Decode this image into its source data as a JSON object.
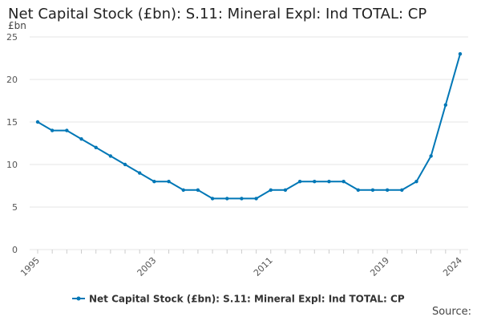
{
  "chart_data": {
    "type": "line",
    "title": "Net Capital Stock (£bn): S.11: Mineral Expl: Ind TOTAL: CP",
    "ylabel": "£bn",
    "xlabel": "",
    "ylim": [
      0,
      25
    ],
    "xlim": [
      1995,
      2024
    ],
    "yticks": [
      0,
      5,
      10,
      15,
      20,
      25
    ],
    "xticks": [
      "1995",
      "2003",
      "2011",
      "2019",
      "2024"
    ],
    "grid": true,
    "legend_position": "bottom",
    "x": [
      1995,
      1996,
      1997,
      1998,
      1999,
      2000,
      2001,
      2002,
      2003,
      2004,
      2005,
      2006,
      2007,
      2008,
      2009,
      2010,
      2011,
      2012,
      2013,
      2014,
      2015,
      2016,
      2017,
      2018,
      2019,
      2020,
      2021,
      2022,
      2023,
      2024
    ],
    "series": [
      {
        "name": "Net Capital Stock (£bn): S.11: Mineral Expl: Ind TOTAL: CP",
        "color": "#0077b6",
        "values": [
          15,
          14,
          14,
          13,
          12,
          11,
          10,
          9,
          8,
          8,
          7,
          7,
          6,
          6,
          6,
          6,
          7,
          7,
          8,
          8,
          8,
          8,
          7,
          7,
          7,
          7,
          8,
          11,
          17,
          23
        ]
      }
    ]
  },
  "source_label": "Source:"
}
